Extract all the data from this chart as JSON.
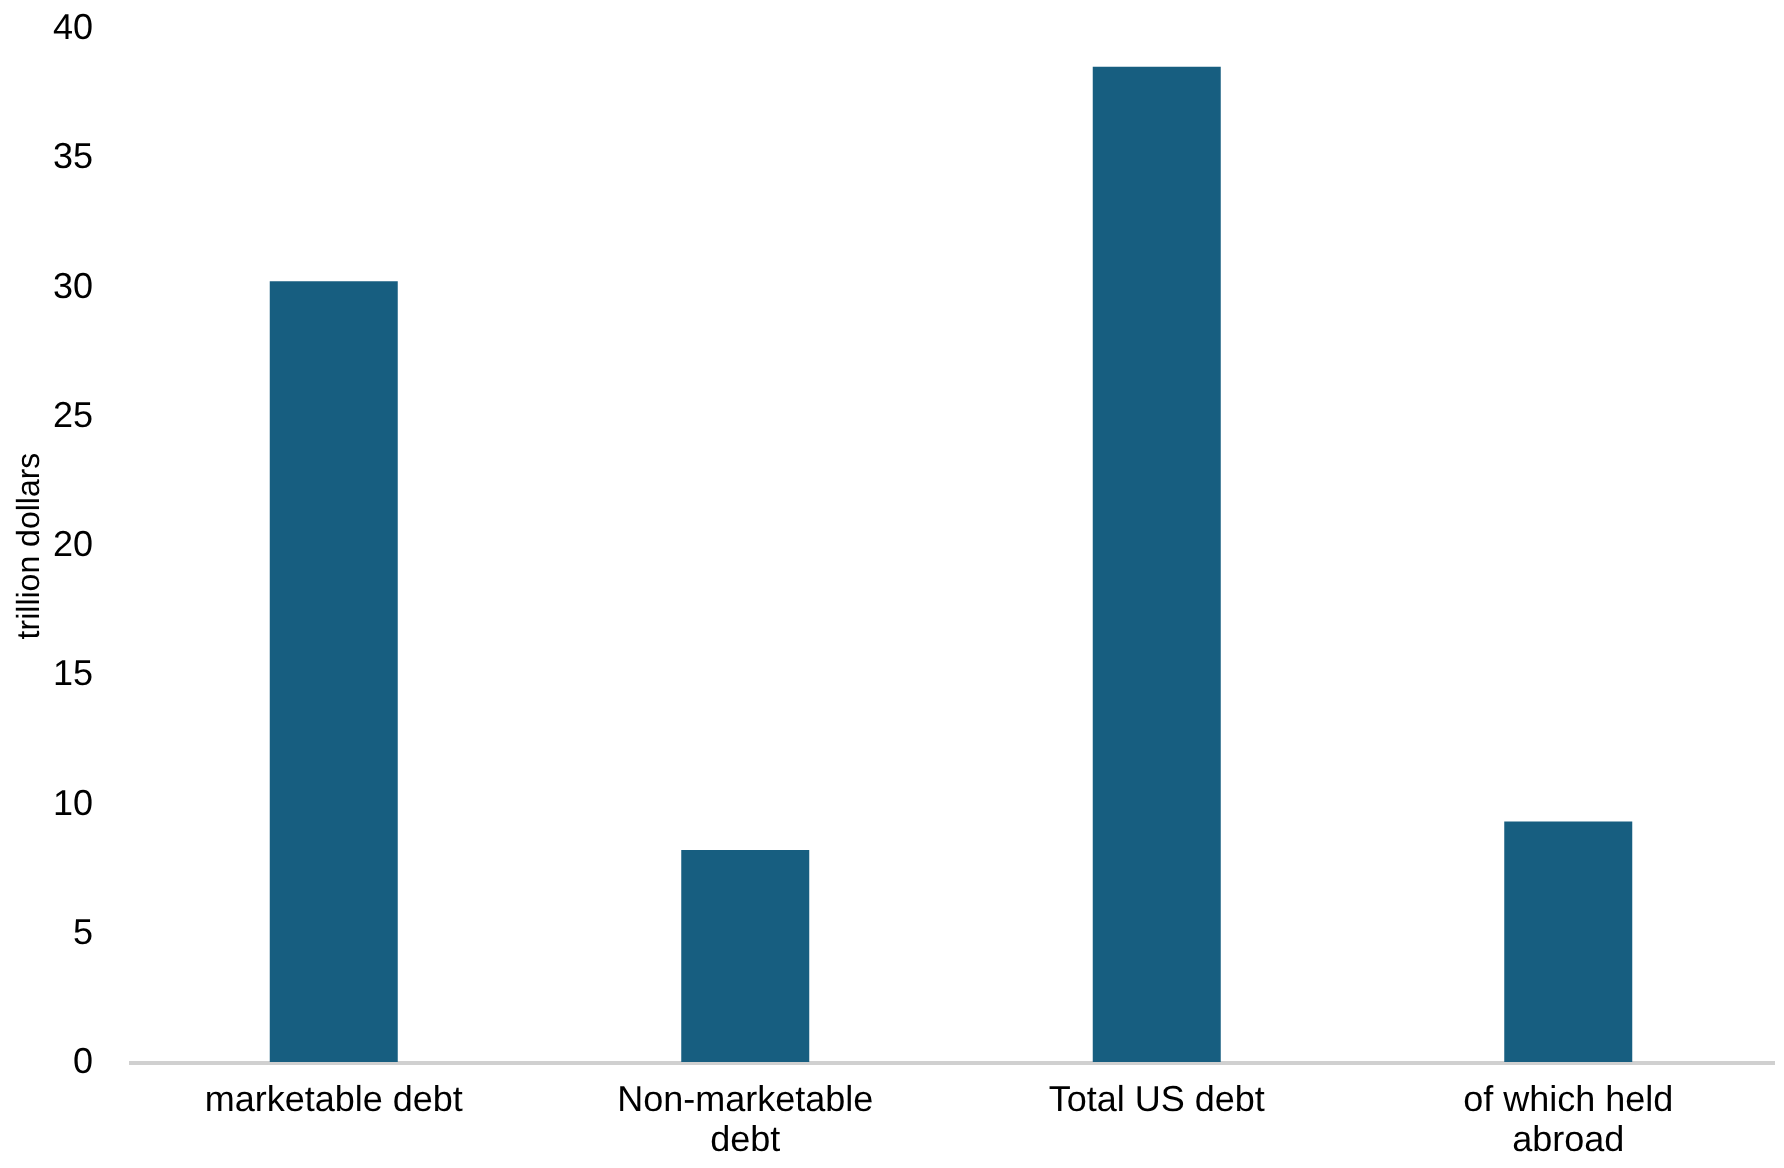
{
  "chart_data": {
    "type": "bar",
    "ylabel": "trillion dollars",
    "categories": [
      "marketable debt",
      "Non-marketable debt",
      "Total US debt",
      "of which held abroad"
    ],
    "values": [
      30.2,
      8.2,
      38.5,
      9.3
    ],
    "color": "#175e80",
    "ylim": [
      0,
      40
    ],
    "yticks": [
      0,
      5,
      10,
      15,
      20,
      25,
      30,
      35,
      40
    ],
    "grid": false
  }
}
